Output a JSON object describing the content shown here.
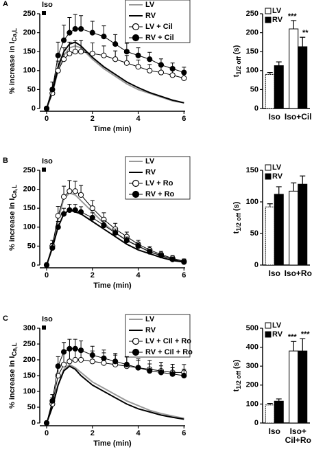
{
  "chart_data": [
    {
      "type": "line",
      "panel": "A",
      "annotation": "Iso",
      "xlabel": "Time (min)",
      "ylabel": "% increase in I",
      "ylabel_sub": "Ca,L",
      "x": [
        0,
        0.25,
        0.5,
        0.75,
        1,
        1.25,
        1.5,
        2,
        2.5,
        3,
        3.5,
        4,
        4.5,
        5,
        5.5,
        6
      ],
      "xlim": [
        -0.3,
        6.05
      ],
      "xticks": [
        0,
        2,
        4,
        6
      ],
      "ylim": [
        0,
        250
      ],
      "yticks": [
        0,
        50,
        100,
        150,
        200,
        250
      ],
      "series": [
        {
          "name": "LV",
          "color": "#999999",
          "marker": "none",
          "values": [
            0,
            40,
            100,
            140,
            160,
            165,
            160,
            130,
            105,
            85,
            65,
            50,
            40,
            30,
            20,
            15
          ]
        },
        {
          "name": "RV",
          "color": "#000000",
          "marker": "none",
          "values": [
            0,
            50,
            110,
            150,
            170,
            175,
            165,
            135,
            110,
            90,
            70,
            55,
            42,
            32,
            22,
            15
          ]
        },
        {
          "name": "LV + Cil",
          "color": "#ffffff",
          "marker": "circle",
          "values": [
            0,
            40,
            100,
            130,
            145,
            150,
            150,
            145,
            140,
            130,
            120,
            110,
            100,
            95,
            88,
            80
          ],
          "errors": [
            5,
            15,
            25,
            30,
            30,
            30,
            30,
            28,
            25,
            22,
            20,
            18,
            16,
            15,
            14,
            12
          ]
        },
        {
          "name": "RV + Cil",
          "color": "#000000",
          "marker": "circle",
          "values": [
            0,
            50,
            140,
            180,
            200,
            210,
            210,
            200,
            190,
            170,
            150,
            140,
            130,
            115,
            105,
            95
          ],
          "errors": [
            5,
            20,
            35,
            40,
            40,
            38,
            35,
            30,
            28,
            25,
            22,
            20,
            18,
            16,
            15,
            14
          ]
        }
      ]
    },
    {
      "type": "bar",
      "ylabel": "t",
      "ylabel_sub": "1/2 off",
      "ylabel_unit": "(s)",
      "categories": [
        "Iso",
        "Iso+Cil"
      ],
      "ylim": [
        0,
        250
      ],
      "yticks": [
        0,
        50,
        100,
        150,
        200,
        250
      ],
      "series": [
        {
          "name": "LV",
          "color": "#ffffff",
          "values": [
            90,
            210
          ],
          "errors": [
            5,
            22
          ],
          "significance": [
            null,
            "***"
          ]
        },
        {
          "name": "RV",
          "color": "#000000",
          "values": [
            113,
            163
          ],
          "errors": [
            10,
            25
          ],
          "significance": [
            null,
            "**"
          ]
        }
      ]
    },
    {
      "type": "line",
      "panel": "B",
      "annotation": "Iso",
      "xlabel": "Time (min)",
      "ylabel": "% increase in I",
      "ylabel_sub": "Ca,L",
      "x": [
        0,
        0.25,
        0.5,
        0.75,
        1,
        1.25,
        1.5,
        2,
        2.5,
        3,
        3.5,
        4,
        4.5,
        5,
        5.5,
        6
      ],
      "xlim": [
        -0.3,
        6.05
      ],
      "xticks": [
        0,
        2,
        4,
        6
      ],
      "ylim": [
        0,
        250
      ],
      "yticks": [
        0,
        50,
        100,
        150,
        200,
        250
      ],
      "series": [
        {
          "name": "LV",
          "color": "#999999",
          "marker": "none",
          "values": [
            0,
            50,
            120,
            175,
            190,
            185,
            170,
            140,
            110,
            85,
            65,
            50,
            35,
            25,
            15,
            10
          ]
        },
        {
          "name": "RV",
          "color": "#000000",
          "marker": "none",
          "values": [
            0,
            45,
            100,
            135,
            145,
            140,
            135,
            115,
            95,
            75,
            55,
            40,
            30,
            20,
            12,
            8
          ]
        },
        {
          "name": "LV + Ro",
          "color": "#ffffff",
          "marker": "circle",
          "values": [
            0,
            50,
            130,
            180,
            195,
            195,
            185,
            150,
            120,
            95,
            75,
            55,
            40,
            28,
            18,
            10
          ],
          "errors": [
            5,
            15,
            25,
            28,
            28,
            26,
            25,
            20,
            18,
            15,
            12,
            10,
            9,
            8,
            7,
            6
          ]
        },
        {
          "name": "RV + Ro",
          "color": "#000000",
          "marker": "circle",
          "values": [
            0,
            45,
            100,
            135,
            145,
            145,
            140,
            125,
            105,
            85,
            65,
            50,
            35,
            25,
            15,
            8
          ],
          "errors": [
            5,
            12,
            15,
            15,
            15,
            15,
            14,
            13,
            12,
            10,
            9,
            8,
            7,
            6,
            5,
            5
          ]
        }
      ]
    },
    {
      "type": "bar",
      "ylabel": "t",
      "ylabel_sub": "1/2 off",
      "ylabel_unit": "(s)",
      "categories": [
        "Iso",
        "Iso+Ro"
      ],
      "ylim": [
        0,
        150
      ],
      "yticks": [
        0,
        50,
        100,
        150
      ],
      "series": [
        {
          "name": "LV",
          "color": "#ffffff",
          "values": [
            92,
            117
          ],
          "errors": [
            5,
            13
          ]
        },
        {
          "name": "RV",
          "color": "#000000",
          "values": [
            112,
            128
          ],
          "errors": [
            12,
            13
          ]
        }
      ]
    },
    {
      "type": "line",
      "panel": "C",
      "annotation": "Iso",
      "xlabel": "Time (min)",
      "ylabel": "% increase in I",
      "ylabel_sub": "Ca,L",
      "x": [
        0,
        0.25,
        0.5,
        0.75,
        1,
        1.25,
        1.5,
        2,
        2.5,
        3,
        3.5,
        4,
        4.5,
        5,
        5.5,
        6
      ],
      "xlim": [
        -0.3,
        6.05
      ],
      "xticks": [
        0,
        2,
        4,
        6
      ],
      "ylim": [
        0,
        300
      ],
      "yticks": [
        0,
        50,
        100,
        150,
        200,
        250,
        300
      ],
      "series": [
        {
          "name": "LV",
          "color": "#999999",
          "marker": "none",
          "values": [
            0,
            50,
            120,
            170,
            185,
            175,
            160,
            130,
            110,
            90,
            70,
            55,
            40,
            30,
            22,
            15
          ]
        },
        {
          "name": "RV",
          "color": "#000000",
          "marker": "none",
          "values": [
            0,
            50,
            120,
            165,
            180,
            170,
            150,
            120,
            100,
            80,
            60,
            45,
            35,
            25,
            18,
            12
          ]
        },
        {
          "name": "LV + Cil + Ro",
          "color": "#ffffff",
          "marker": "circle",
          "values": [
            0,
            60,
            150,
            185,
            195,
            200,
            200,
            195,
            190,
            185,
            180,
            175,
            170,
            165,
            160,
            160
          ],
          "errors": [
            5,
            20,
            35,
            35,
            35,
            35,
            35,
            33,
            32,
            30,
            30,
            28,
            28,
            27,
            26,
            25
          ]
        },
        {
          "name": "RV + Cil + Ro",
          "color": "#000000",
          "marker": "circle",
          "values": [
            0,
            70,
            180,
            225,
            235,
            235,
            230,
            215,
            205,
            195,
            185,
            175,
            165,
            160,
            155,
            150
          ],
          "errors": [
            5,
            20,
            30,
            30,
            30,
            30,
            30,
            28,
            26,
            25,
            24,
            23,
            22,
            21,
            20,
            20
          ]
        }
      ]
    },
    {
      "type": "bar",
      "ylabel": "t",
      "ylabel_sub": "1/2 off",
      "ylabel_unit": "(s)",
      "categories": [
        "Iso",
        "Iso+\nCil+Ro"
      ],
      "ylim": [
        0,
        500
      ],
      "yticks": [
        0,
        100,
        200,
        300,
        400,
        500
      ],
      "series": [
        {
          "name": "LV",
          "color": "#ffffff",
          "values": [
            95,
            380
          ],
          "errors": [
            8,
            50
          ],
          "significance": [
            null,
            "***"
          ]
        },
        {
          "name": "RV",
          "color": "#000000",
          "values": [
            115,
            380
          ],
          "errors": [
            12,
            65
          ],
          "significance": [
            null,
            "***"
          ]
        }
      ]
    }
  ]
}
